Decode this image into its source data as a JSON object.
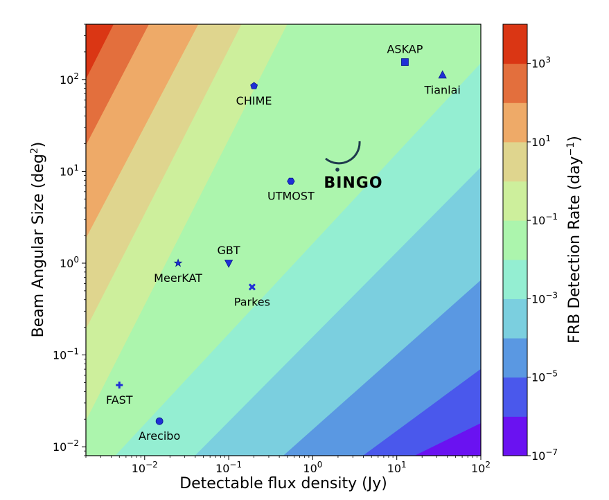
{
  "chart_data": {
    "type": "contour",
    "title": "",
    "xlabel": "Detectable flux density (Jy)",
    "ylabel": "Beam Angular Size (deg",
    "ylabel_sup": "2",
    "ylabel_end": ")",
    "x_scale": "log",
    "y_scale": "log",
    "xlim": [
      0.002,
      100
    ],
    "ylim": [
      0.008,
      400
    ],
    "x_ticks": [
      {
        "value": 0.01,
        "base": "10",
        "exp": "−2"
      },
      {
        "value": 0.1,
        "base": "10",
        "exp": "−1"
      },
      {
        "value": 1,
        "base": "10",
        "exp": "0"
      },
      {
        "value": 10,
        "base": "10",
        "exp": "1"
      },
      {
        "value": 100,
        "base": "10",
        "exp": "2"
      }
    ],
    "y_ticks": [
      {
        "value": 0.01,
        "base": "10",
        "exp": "−2"
      },
      {
        "value": 0.1,
        "base": "10",
        "exp": "−1"
      },
      {
        "value": 1,
        "base": "10",
        "exp": "0"
      },
      {
        "value": 10,
        "base": "10",
        "exp": "1"
      },
      {
        "value": 100,
        "base": "10",
        "exp": "2"
      }
    ],
    "colorbar": {
      "label": "FRB Detection Rate (day",
      "label_sup": "−1",
      "label_end": ")",
      "scale": "log",
      "range": [
        1e-07,
        10000
      ],
      "levels": [
        {
          "from": 1e-07,
          "to": 1e-06,
          "color": "#6a12f1"
        },
        {
          "from": 1e-06,
          "to": 1e-05,
          "color": "#4a58ec"
        },
        {
          "from": 1e-05,
          "to": 0.0001,
          "color": "#5a98e2"
        },
        {
          "from": 0.0001,
          "to": 0.001,
          "color": "#7bcfdf"
        },
        {
          "from": 0.001,
          "to": 0.01,
          "color": "#94eed2"
        },
        {
          "from": 0.01,
          "to": 0.1,
          "color": "#acf5ad"
        },
        {
          "from": 0.1,
          "to": 1,
          "color": "#cdef9c"
        },
        {
          "from": 1,
          "to": 10,
          "color": "#dfd58e"
        },
        {
          "from": 10,
          "to": 100,
          "color": "#eeaa68"
        },
        {
          "from": 100,
          "to": 1000,
          "color": "#e36f3d"
        },
        {
          "from": 1000,
          "to": 10000,
          "color": "#da3614"
        }
      ],
      "ticks": [
        {
          "value": 1e-07,
          "base": "10",
          "exp": "−7"
        },
        {
          "value": 1e-05,
          "base": "10",
          "exp": "−5"
        },
        {
          "value": 0.001,
          "base": "10",
          "exp": "−3"
        },
        {
          "value": 0.1,
          "base": "10",
          "exp": "−1"
        },
        {
          "value": 10,
          "base": "10",
          "exp": "1"
        },
        {
          "value": 1000,
          "base": "10",
          "exp": "3"
        }
      ]
    },
    "contour_bands": [
      {
        "level_index": 10,
        "color": "#da3614",
        "points": [
          [
            0.002,
            400
          ],
          [
            0.0043,
            400
          ],
          [
            0.002,
            100
          ]
        ]
      },
      {
        "level_index": 9,
        "color": "#e36f3d",
        "points": [
          [
            0.0043,
            400
          ],
          [
            0.0113,
            400
          ],
          [
            0.002,
            19
          ],
          [
            0.002,
            100
          ]
        ]
      },
      {
        "level_index": 8,
        "color": "#eeaa68",
        "points": [
          [
            0.0113,
            400
          ],
          [
            0.0438,
            400
          ],
          [
            0.002,
            1.85
          ],
          [
            0.002,
            19
          ]
        ]
      },
      {
        "level_index": 7,
        "color": "#dfd58e",
        "points": [
          [
            0.0438,
            400
          ],
          [
            0.143,
            400
          ],
          [
            0.002,
            0.19
          ],
          [
            0.002,
            1.85
          ]
        ]
      },
      {
        "level_index": 6,
        "color": "#cdef9c",
        "points": [
          [
            0.143,
            400
          ],
          [
            0.5,
            400
          ],
          [
            0.002,
            0.019
          ],
          [
            0.002,
            0.19
          ]
        ]
      },
      {
        "level_index": 5,
        "color": "#acf5ad",
        "points": [
          [
            0.5,
            400
          ],
          [
            100,
            400
          ],
          [
            100,
            150
          ],
          [
            0.0045,
            0.008
          ],
          [
            0.002,
            0.008
          ],
          [
            0.002,
            0.019
          ]
        ]
      },
      {
        "level_index": 4,
        "color": "#94eed2",
        "points": [
          [
            100,
            150
          ],
          [
            100,
            11
          ],
          [
            0.04,
            0.008
          ],
          [
            0.0045,
            0.008
          ]
        ]
      },
      {
        "level_index": 3,
        "color": "#7bcfdf",
        "points": [
          [
            100,
            11
          ],
          [
            100,
            0.65
          ],
          [
            0.45,
            0.008
          ],
          [
            0.04,
            0.008
          ]
        ]
      },
      {
        "level_index": 2,
        "color": "#5a98e2",
        "points": [
          [
            100,
            0.65
          ],
          [
            100,
            0.07
          ],
          [
            4,
            0.008
          ],
          [
            0.45,
            0.008
          ]
        ]
      },
      {
        "level_index": 1,
        "color": "#4a58ec",
        "points": [
          [
            100,
            0.07
          ],
          [
            100,
            0.018
          ],
          [
            16.5,
            0.008
          ],
          [
            4,
            0.008
          ]
        ]
      },
      {
        "level_index": 0,
        "color": "#6a12f1",
        "points": [
          [
            100,
            0.018
          ],
          [
            100,
            0.008
          ],
          [
            16.5,
            0.008
          ]
        ]
      }
    ],
    "telescopes": [
      {
        "name": "ASKAP",
        "x": 12.5,
        "y": 155,
        "marker": "square",
        "label_pos": "above"
      },
      {
        "name": "Tianlai",
        "x": 35,
        "y": 112,
        "marker": "triangle-up",
        "label_pos": "below"
      },
      {
        "name": "CHIME",
        "x": 0.2,
        "y": 85,
        "marker": "pentagon",
        "label_pos": "below"
      },
      {
        "name": "UTMOST",
        "x": 0.55,
        "y": 7.8,
        "marker": "hexagon",
        "label_pos": "below"
      },
      {
        "name": "GBT",
        "x": 0.1,
        "y": 1.0,
        "marker": "triangle-down",
        "label_pos": "above"
      },
      {
        "name": "MeerKAT",
        "x": 0.025,
        "y": 1.0,
        "marker": "star",
        "label_pos": "below"
      },
      {
        "name": "Parkes",
        "x": 0.19,
        "y": 0.55,
        "marker": "x",
        "label_pos": "below"
      },
      {
        "name": "FAST",
        "x": 0.005,
        "y": 0.047,
        "marker": "plus",
        "label_pos": "below"
      },
      {
        "name": "Arecibo",
        "x": 0.015,
        "y": 0.019,
        "marker": "circle",
        "label_pos": "below"
      }
    ],
    "marker_color": "#1f2fd6",
    "logo": {
      "text": "BINGO",
      "color": "#1f3b4d",
      "x": 2.4,
      "y": 9
    }
  }
}
